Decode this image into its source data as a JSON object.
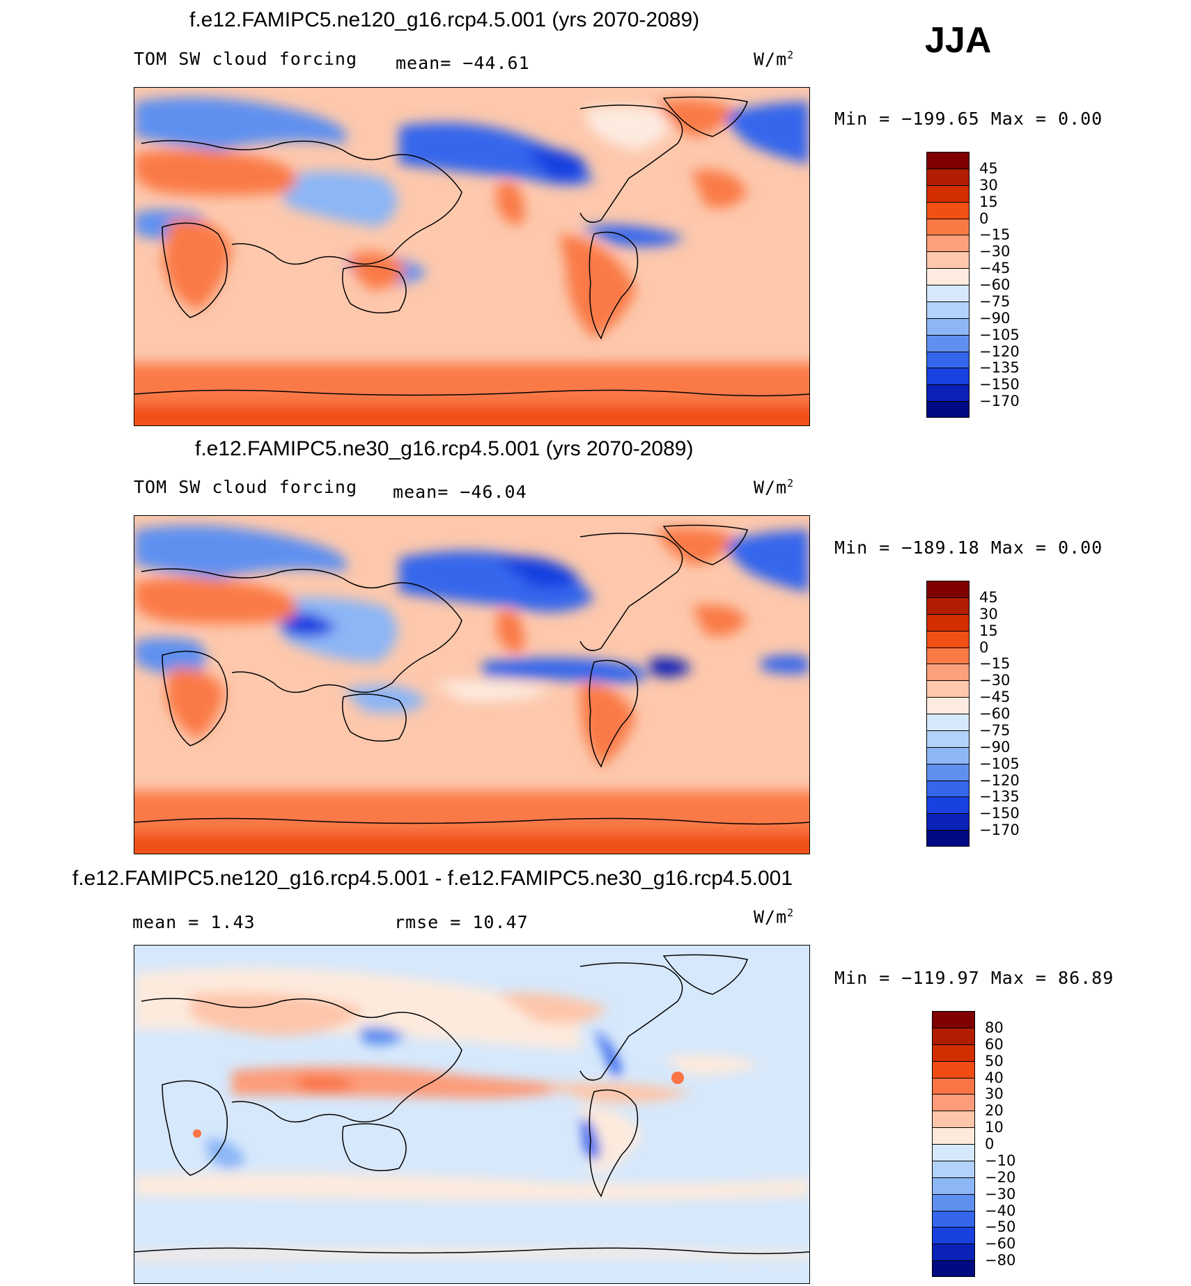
{
  "season": "JJA",
  "panels": [
    {
      "id": "ne120",
      "title": "f.e12.FAMIPC5.ne120_g16.rcp4.5.001 (yrs 2070-2089)",
      "left_label": "TOM SW cloud forcing",
      "center_label": "mean= −44.61",
      "units": "W/m",
      "units_sup": "2",
      "minmax": "Min = −199.65 Max =    0.00",
      "colorbar": {
        "labels": [
          "45",
          "30",
          "15",
          "0",
          "−15",
          "−30",
          "−45",
          "−60",
          "−75",
          "−90",
          "−105",
          "−120",
          "−135",
          "−150",
          "−170"
        ],
        "colors": [
          "#7f0000",
          "#b11d00",
          "#d22e00",
          "#f05014",
          "#fa7a46",
          "#fca07c",
          "#fdc8ac",
          "#fdebe0",
          "#d6e8fb",
          "#b2d2fb",
          "#8cb6f6",
          "#5f90f0",
          "#3566ec",
          "#1941e0",
          "#0a22b6",
          "#000a82"
        ]
      }
    },
    {
      "id": "ne30",
      "title": "f.e12.FAMIPC5.ne30_g16.rcp4.5.001 (yrs 2070-2089)",
      "left_label": "TOM SW cloud forcing",
      "center_label": "mean= −46.04",
      "units": "W/m",
      "units_sup": "2",
      "minmax": "Min = −189.18 Max =    0.00",
      "colorbar": {
        "labels": [
          "45",
          "30",
          "15",
          "0",
          "−15",
          "−30",
          "−45",
          "−60",
          "−75",
          "−90",
          "−105",
          "−120",
          "−135",
          "−150",
          "−170"
        ],
        "colors": [
          "#7f0000",
          "#b11d00",
          "#d22e00",
          "#f05014",
          "#fa7a46",
          "#fca07c",
          "#fdc8ac",
          "#fdebe0",
          "#d6e8fb",
          "#b2d2fb",
          "#8cb6f6",
          "#5f90f0",
          "#3566ec",
          "#1941e0",
          "#0a22b6",
          "#000a82"
        ]
      }
    },
    {
      "id": "diff",
      "title": "f.e12.FAMIPC5.ne120_g16.rcp4.5.001 - f.e12.FAMIPC5.ne30_g16.rcp4.5.001",
      "left_label": "mean =    1.43",
      "center_label": "rmse =   10.47",
      "units": "W/m",
      "units_sup": "2",
      "minmax": "Min = −119.97 Max =   86.89",
      "colorbar": {
        "labels": [
          "80",
          "60",
          "50",
          "40",
          "30",
          "20",
          "10",
          "0",
          "−10",
          "−20",
          "−30",
          "−40",
          "−50",
          "−60",
          "−80"
        ],
        "colors": [
          "#7f0000",
          "#b11d00",
          "#d22e00",
          "#f04c14",
          "#fa7446",
          "#fc9c7a",
          "#fdc6aa",
          "#fdeadd",
          "#d6e8fb",
          "#b2d2fb",
          "#8cb6f6",
          "#5f90f0",
          "#3566ec",
          "#1941e0",
          "#0a22b6",
          "#000a82"
        ]
      }
    }
  ]
}
